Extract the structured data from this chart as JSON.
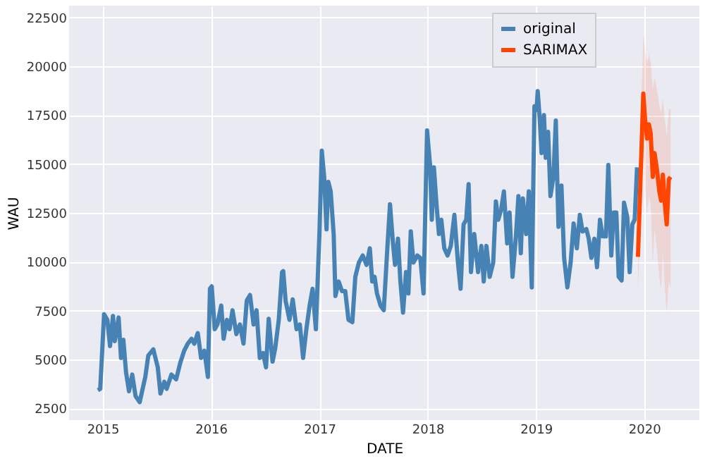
{
  "chart_data": {
    "type": "line",
    "xlabel": "DATE",
    "ylabel": "WAU",
    "xlim": [
      "2014-09-10",
      "2020-07-05"
    ],
    "xticks": [
      {
        "value": "2015-01-01",
        "label": "2015"
      },
      {
        "value": "2016-01-01",
        "label": "2016"
      },
      {
        "value": "2017-01-01",
        "label": "2017"
      },
      {
        "value": "2018-01-01",
        "label": "2018"
      },
      {
        "value": "2019-01-01",
        "label": "2019"
      },
      {
        "value": "2020-01-01",
        "label": "2020"
      }
    ],
    "ylim": [
      1900,
      23100
    ],
    "yticks": [
      2500,
      5000,
      7500,
      10000,
      12500,
      15000,
      17500,
      20000,
      22500
    ],
    "grid": true,
    "legend": "top right",
    "marker": "none",
    "line_style": "solid",
    "series": [
      {
        "name": "original",
        "color": "#4682b4",
        "x": [
          "2014-12-16",
          "2014-12-24",
          "2015-01-06",
          "2015-01-17",
          "2015-01-26",
          "2015-02-05",
          "2015-02-11",
          "2015-02-18",
          "2015-02-24",
          "2015-03-04",
          "2015-03-12",
          "2015-03-21",
          "2015-03-31",
          "2015-04-11",
          "2015-04-22",
          "2015-05-06",
          "2015-05-25",
          "2015-06-04",
          "2015-06-21",
          "2015-07-06",
          "2015-07-15",
          "2015-07-28",
          "2015-08-05",
          "2015-08-21",
          "2015-09-06",
          "2015-09-20",
          "2015-10-03",
          "2015-10-15",
          "2015-10-28",
          "2015-11-06",
          "2015-11-18",
          "2015-11-29",
          "2015-12-10",
          "2015-12-22",
          "2015-12-29",
          "2016-01-04",
          "2016-01-14",
          "2016-01-23",
          "2016-02-05",
          "2016-02-13",
          "2016-02-24",
          "2016-03-04",
          "2016-03-14",
          "2016-03-27",
          "2016-04-08",
          "2016-04-20",
          "2016-05-01",
          "2016-05-12",
          "2016-05-24",
          "2016-06-03",
          "2016-06-14",
          "2016-06-25",
          "2016-07-05",
          "2016-07-14",
          "2016-07-27",
          "2016-08-05",
          "2016-08-17",
          "2016-08-28",
          "2016-09-01",
          "2016-09-09",
          "2016-09-22",
          "2016-10-03",
          "2016-10-16",
          "2016-10-27",
          "2016-11-07",
          "2016-11-18",
          "2016-11-29",
          "2016-12-09",
          "2016-12-20",
          "2017-01-01",
          "2017-01-09",
          "2017-01-17",
          "2017-01-25",
          "2017-01-31",
          "2017-02-08",
          "2017-02-18",
          "2017-02-24",
          "2017-03-07",
          "2017-03-18",
          "2017-03-29",
          "2017-04-09",
          "2017-04-22",
          "2017-05-02",
          "2017-05-14",
          "2017-05-27",
          "2017-06-09",
          "2017-06-20",
          "2017-06-28",
          "2017-07-06",
          "2017-07-14",
          "2017-07-26",
          "2017-08-06",
          "2017-08-18",
          "2017-08-27",
          "2017-09-06",
          "2017-09-13",
          "2017-09-23",
          "2017-10-01",
          "2017-10-10",
          "2017-10-20",
          "2017-10-28",
          "2017-11-05",
          "2017-11-14",
          "2017-11-27",
          "2017-12-07",
          "2017-12-18",
          "2017-12-30",
          "2018-01-09",
          "2018-01-15",
          "2018-01-22",
          "2018-01-31",
          "2018-02-08",
          "2018-02-16",
          "2018-02-26",
          "2018-03-09",
          "2018-03-20",
          "2018-04-01",
          "2018-04-13",
          "2018-04-22",
          "2018-05-02",
          "2018-05-11",
          "2018-05-19",
          "2018-05-27",
          "2018-06-07",
          "2018-06-20",
          "2018-07-01",
          "2018-07-09",
          "2018-07-18",
          "2018-07-29",
          "2018-08-10",
          "2018-08-19",
          "2018-08-27",
          "2018-09-06",
          "2018-09-15",
          "2018-09-26",
          "2018-10-04",
          "2018-10-14",
          "2018-10-25",
          "2018-11-03",
          "2018-11-11",
          "2018-11-18",
          "2018-11-29",
          "2018-12-08",
          "2018-12-18",
          "2018-12-27",
          "2019-01-03",
          "2019-01-07",
          "2019-01-14",
          "2019-01-20",
          "2019-01-28",
          "2019-02-03",
          "2019-02-11",
          "2019-02-19",
          "2019-03-01",
          "2019-03-09",
          "2019-03-18",
          "2019-03-28",
          "2019-04-06",
          "2019-04-17",
          "2019-04-28",
          "2019-05-08",
          "2019-05-19",
          "2019-05-29",
          "2019-06-07",
          "2019-06-20",
          "2019-06-28",
          "2019-07-07",
          "2019-07-17",
          "2019-07-26",
          "2019-08-05",
          "2019-08-14",
          "2019-08-25",
          "2019-09-02",
          "2019-09-12",
          "2019-09-20",
          "2019-09-29",
          "2019-10-07",
          "2019-10-17",
          "2019-10-25",
          "2019-11-05",
          "2019-11-13",
          "2019-11-22",
          "2019-11-30",
          "2019-12-08"
        ],
        "values": [
          3430,
          3500,
          7320,
          7030,
          5690,
          7230,
          5940,
          6550,
          7150,
          5080,
          6010,
          4350,
          3380,
          4230,
          3130,
          2820,
          4110,
          5200,
          5520,
          4600,
          3260,
          3860,
          3500,
          4230,
          3990,
          4840,
          5450,
          5810,
          6060,
          5810,
          6350,
          5080,
          5450,
          4110,
          8620,
          8740,
          6550,
          6790,
          7760,
          6060,
          7030,
          6550,
          7520,
          6300,
          6790,
          5810,
          8010,
          8300,
          6790,
          7520,
          5080,
          5330,
          4600,
          7080,
          4890,
          5570,
          7030,
          9470,
          9520,
          8010,
          7030,
          8080,
          6550,
          6790,
          5080,
          6550,
          7760,
          8620,
          6550,
          11420,
          15680,
          14340,
          11660,
          14090,
          13600,
          11420,
          8250,
          8990,
          8500,
          8500,
          7030,
          6910,
          9230,
          9960,
          10320,
          9840,
          10690,
          8990,
          9230,
          8380,
          7760,
          7520,
          10690,
          12940,
          10940,
          9840,
          11180,
          8990,
          7400,
          9470,
          8380,
          11550,
          9960,
          10320,
          10200,
          8380,
          16720,
          14950,
          12150,
          14830,
          12890,
          11420,
          12150,
          10690,
          10320,
          10810,
          12400,
          9960,
          8620,
          11910,
          12150,
          13970,
          9470,
          11420,
          9470,
          10810,
          8990,
          10810,
          9230,
          9960,
          13090,
          12150,
          12690,
          13600,
          10940,
          12520,
          9230,
          11180,
          13360,
          10440,
          13240,
          11420,
          13600,
          8690,
          17950,
          17760,
          18730,
          17270,
          15560,
          17500,
          15320,
          16650,
          13360,
          14340,
          17220,
          11790,
          13900,
          10200,
          8690,
          9960,
          11960,
          10690,
          12400,
          11550,
          11670,
          11180,
          10200,
          11180,
          9720,
          12150,
          11300,
          11300,
          14950,
          10320,
          12520,
          12520,
          9230,
          9040,
          13020,
          12280,
          9470,
          11910,
          12150,
          14830
        ]
      },
      {
        "name": "SARIMAX",
        "color": "#ff4500",
        "x": [
          "2019-12-11",
          "2019-12-29",
          "2020-01-04",
          "2020-01-11",
          "2020-01-17",
          "2020-01-23",
          "2020-01-30",
          "2020-02-05",
          "2020-02-13",
          "2020-02-21",
          "2020-02-27",
          "2020-03-04",
          "2020-03-11",
          "2020-03-17",
          "2020-03-24",
          "2020-03-30"
        ],
        "values": [
          10250,
          18600,
          17270,
          16300,
          17030,
          16550,
          14340,
          15560,
          14710,
          13600,
          13120,
          14460,
          12890,
          11910,
          14220,
          14340
        ],
        "lower": [
          8500,
          15600,
          13700,
          12400,
          13400,
          12900,
          9900,
          11700,
          10600,
          9200,
          8600,
          10500,
          8600,
          7400,
          9000,
          8700
        ],
        "upper": [
          12000,
          21600,
          20800,
          20200,
          20600,
          20200,
          18800,
          19400,
          18800,
          18000,
          17600,
          18400,
          17200,
          16400,
          17800,
          17800
        ]
      }
    ]
  }
}
